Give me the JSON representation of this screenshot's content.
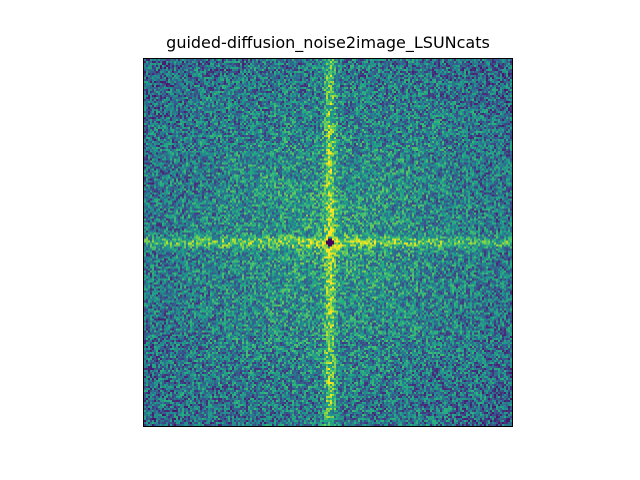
{
  "chart_data": {
    "type": "heatmap",
    "title": "guided-diffusion_noise2image_LSUNcats",
    "xlabel": "",
    "ylabel": "",
    "colormap": "viridis",
    "axes_ticks_visible": false,
    "grid": false,
    "description_of_pattern": "2D log-magnitude frequency spectrum: bright vertical and horizontal cross through a dark DC center, speckled noise elsewhere, darker toward corners",
    "colors": {
      "low": "#440154",
      "mid": "#21918c",
      "high": "#fde725"
    }
  }
}
